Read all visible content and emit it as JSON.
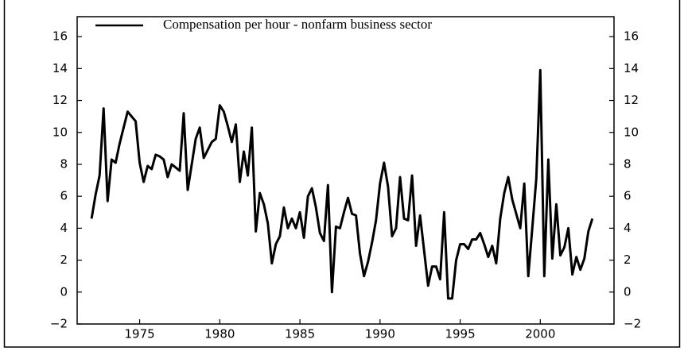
{
  "chart_data": {
    "type": "line",
    "legend": "top",
    "x": [
      1972,
      1972.25,
      1972.5,
      1972.75,
      1973,
      1973.25,
      1973.5,
      1973.75,
      1974,
      1974.25,
      1974.5,
      1974.75,
      1975,
      1975.25,
      1975.5,
      1975.75,
      1976,
      1976.25,
      1976.5,
      1976.75,
      1977,
      1977.25,
      1977.5,
      1977.75,
      1978,
      1978.25,
      1978.5,
      1978.75,
      1979,
      1979.25,
      1979.5,
      1979.75,
      1980,
      1980.25,
      1980.5,
      1980.75,
      1981,
      1981.25,
      1981.5,
      1981.75,
      1982,
      1982.25,
      1982.5,
      1982.75,
      1983,
      1983.25,
      1983.5,
      1983.75,
      1984,
      1984.25,
      1984.5,
      1984.75,
      1985,
      1985.25,
      1985.5,
      1985.75,
      1986,
      1986.25,
      1986.5,
      1986.75,
      1987,
      1987.25,
      1987.5,
      1987.75,
      1988,
      1988.25,
      1988.5,
      1988.75,
      1989,
      1989.25,
      1989.5,
      1989.75,
      1990,
      1990.25,
      1990.5,
      1990.75,
      1991,
      1991.25,
      1991.5,
      1991.75,
      1992,
      1992.25,
      1992.5,
      1992.75,
      1993,
      1993.25,
      1993.5,
      1993.75,
      1994,
      1994.25,
      1994.5,
      1994.75,
      1995,
      1995.25,
      1995.5,
      1995.75,
      1996,
      1996.25,
      1996.5,
      1996.75,
      1997,
      1997.25,
      1997.5,
      1997.75,
      1998,
      1998.25,
      1998.5,
      1998.75,
      1999,
      1999.25,
      1999.5,
      1999.75,
      2000,
      2000.25,
      2000.5,
      2000.75,
      2001,
      2001.25,
      2001.5,
      2001.75,
      2002,
      2002.25,
      2002.5,
      2002.75,
      2003,
      2003.25
    ],
    "series": [
      {
        "name": "Compensation per hour - nonfarm business sector",
        "color": "#000000",
        "values": [
          4.6,
          6.1,
          7.3,
          11.5,
          5.7,
          8.3,
          8.1,
          9.3,
          10.3,
          11.3,
          11.0,
          10.7,
          8.1,
          6.9,
          7.9,
          7.7,
          8.6,
          8.5,
          8.3,
          7.2,
          8.0,
          7.8,
          7.6,
          11.2,
          6.4,
          8.0,
          9.6,
          10.3,
          8.4,
          8.9,
          9.4,
          9.6,
          11.7,
          11.3,
          10.4,
          9.4,
          10.5,
          6.9,
          8.8,
          7.3,
          10.3,
          3.8,
          6.2,
          5.5,
          4.3,
          1.8,
          3.0,
          3.5,
          5.3,
          4.0,
          4.6,
          4.0,
          5.0,
          3.4,
          6.0,
          6.5,
          5.3,
          3.7,
          3.2,
          6.7,
          0.0,
          4.1,
          4.0,
          5.0,
          5.9,
          4.9,
          4.8,
          2.4,
          1.0,
          1.9,
          3.1,
          4.5,
          6.8,
          8.1,
          6.6,
          3.5,
          4.0,
          7.2,
          4.6,
          4.5,
          7.3,
          2.9,
          4.8,
          2.6,
          0.4,
          1.6,
          1.6,
          0.8,
          5.0,
          -0.4,
          -0.4,
          2.0,
          3.0,
          3.0,
          2.7,
          3.3,
          3.3,
          3.7,
          3.0,
          2.2,
          2.9,
          1.8,
          4.6,
          6.2,
          7.2,
          5.8,
          4.9,
          4.0,
          6.8,
          1.0,
          4.0,
          7.1,
          13.9,
          1.0,
          8.3,
          2.1,
          5.5,
          2.3,
          2.8,
          4.0,
          1.1,
          2.2,
          1.4,
          2.1,
          3.8,
          4.6
        ]
      }
    ],
    "xlim": [
      1971.1,
      2004.6
    ],
    "xticks": [
      1975,
      1980,
      1985,
      1990,
      1995,
      2000
    ],
    "ylim": [
      -2,
      17.25
    ],
    "yticks": [
      {
        "value": -2,
        "label": "−2"
      },
      0,
      2,
      4,
      6,
      8,
      10,
      12,
      14,
      16
    ]
  }
}
